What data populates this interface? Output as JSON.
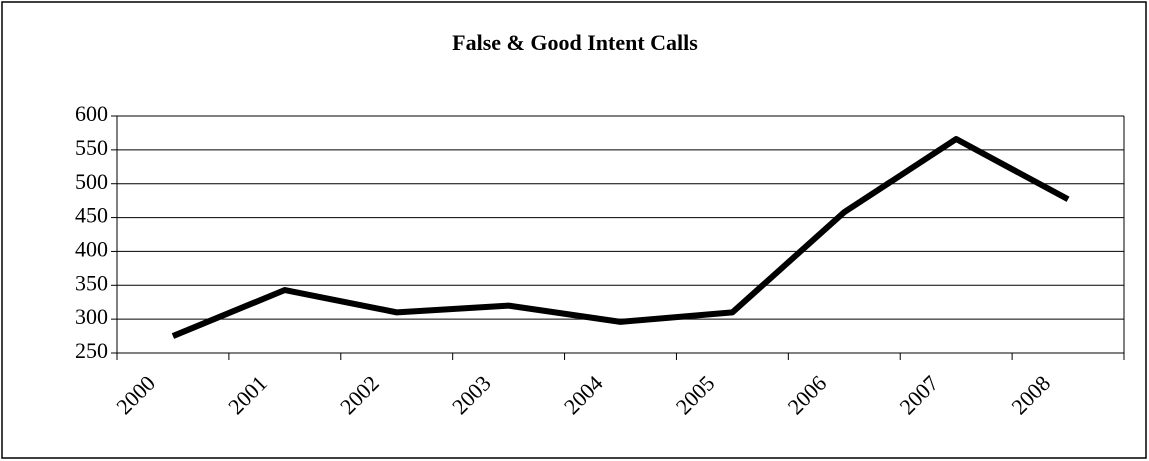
{
  "chart_data": {
    "type": "line",
    "title": "False & Good Intent Calls",
    "categories": [
      "2000",
      "2001",
      "2002",
      "2003",
      "2004",
      "2005",
      "2006",
      "2007",
      "2008"
    ],
    "values": [
      275,
      343,
      310,
      320,
      296,
      310,
      458,
      566,
      477
    ],
    "color": "#000000",
    "ylim": [
      250,
      600
    ],
    "yticks": [
      250,
      300,
      350,
      400,
      450,
      500,
      550,
      600
    ],
    "grid": true
  }
}
